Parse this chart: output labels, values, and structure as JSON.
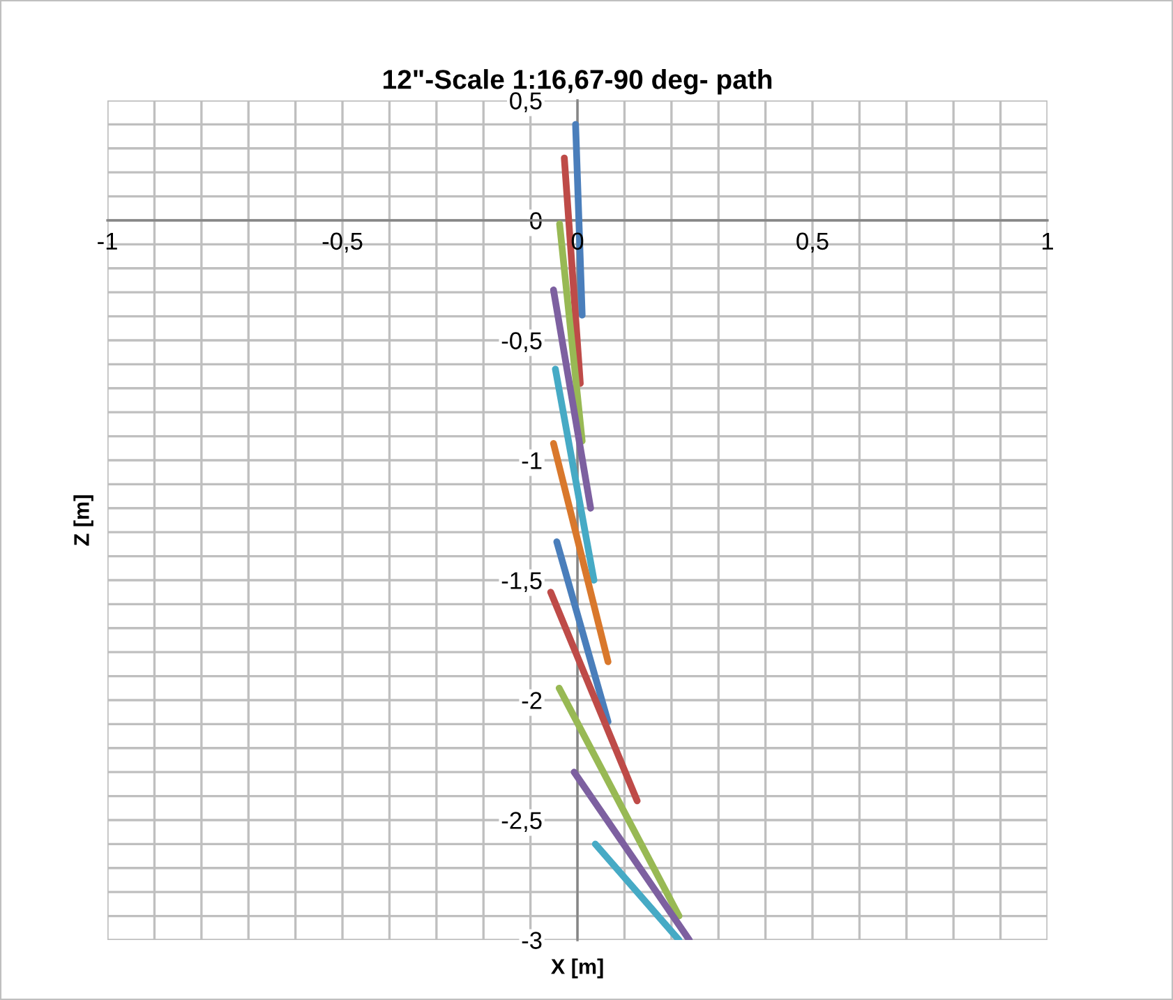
{
  "chart_data": {
    "type": "line",
    "title": "12\"-Scale 1:16,67-90 deg- path",
    "xlabel": "X [m]",
    "ylabel": "Z [m]",
    "xlim": [
      -1,
      1
    ],
    "ylim": [
      -3,
      0.5
    ],
    "xticks": [
      {
        "value": -1,
        "label": "-1"
      },
      {
        "value": -0.9,
        "label": null
      },
      {
        "value": -0.8,
        "label": null
      },
      {
        "value": -0.7,
        "label": null
      },
      {
        "value": -0.6,
        "label": null
      },
      {
        "value": -0.5,
        "label": "-0,5"
      },
      {
        "value": -0.4,
        "label": null
      },
      {
        "value": -0.3,
        "label": null
      },
      {
        "value": -0.2,
        "label": null
      },
      {
        "value": -0.1,
        "label": null
      },
      {
        "value": 0,
        "label": "0"
      },
      {
        "value": 0.1,
        "label": null
      },
      {
        "value": 0.2,
        "label": null
      },
      {
        "value": 0.3,
        "label": null
      },
      {
        "value": 0.4,
        "label": null
      },
      {
        "value": 0.5,
        "label": "0,5"
      },
      {
        "value": 0.6,
        "label": null
      },
      {
        "value": 0.7,
        "label": null
      },
      {
        "value": 0.8,
        "label": null
      },
      {
        "value": 0.9,
        "label": null
      },
      {
        "value": 1,
        "label": "1"
      }
    ],
    "yticks": [
      {
        "value": 0.5,
        "label": "0,5"
      },
      {
        "value": 0.4,
        "label": null
      },
      {
        "value": 0.3,
        "label": null
      },
      {
        "value": 0.2,
        "label": null
      },
      {
        "value": 0.1,
        "label": null
      },
      {
        "value": 0,
        "label": "0"
      },
      {
        "value": -0.1,
        "label": null
      },
      {
        "value": -0.2,
        "label": null
      },
      {
        "value": -0.3,
        "label": null
      },
      {
        "value": -0.4,
        "label": null
      },
      {
        "value": -0.5,
        "label": "-0,5"
      },
      {
        "value": -0.6,
        "label": null
      },
      {
        "value": -0.7,
        "label": null
      },
      {
        "value": -0.8,
        "label": null
      },
      {
        "value": -0.9,
        "label": null
      },
      {
        "value": -1,
        "label": "-1"
      },
      {
        "value": -1.1,
        "label": null
      },
      {
        "value": -1.2,
        "label": null
      },
      {
        "value": -1.3,
        "label": null
      },
      {
        "value": -1.4,
        "label": null
      },
      {
        "value": -1.5,
        "label": "-1,5"
      },
      {
        "value": -1.6,
        "label": null
      },
      {
        "value": -1.7,
        "label": null
      },
      {
        "value": -1.8,
        "label": null
      },
      {
        "value": -1.9,
        "label": null
      },
      {
        "value": -2,
        "label": "-2"
      },
      {
        "value": -2.1,
        "label": null
      },
      {
        "value": -2.2,
        "label": null
      },
      {
        "value": -2.3,
        "label": null
      },
      {
        "value": -2.4,
        "label": null
      },
      {
        "value": -2.5,
        "label": "-2,5"
      },
      {
        "value": -2.6,
        "label": null
      },
      {
        "value": -2.7,
        "label": null
      },
      {
        "value": -2.8,
        "label": null
      },
      {
        "value": -2.9,
        "label": null
      },
      {
        "value": -3,
        "label": "-3"
      }
    ],
    "grid": true,
    "marker": "none",
    "line_style": "solid",
    "series": [
      {
        "color": "#4a7ebb",
        "x": [
          -0.004,
          0.01
        ],
        "values": [
          0.4,
          -0.395
        ]
      },
      {
        "color": "#be4b48",
        "x": [
          -0.028,
          0.006
        ],
        "values": [
          0.26,
          -0.68
        ]
      },
      {
        "color": "#98b954",
        "x": [
          -0.038,
          0.01
        ],
        "values": [
          -0.015,
          -0.92
        ]
      },
      {
        "color": "#7d60a0",
        "x": [
          -0.051,
          0.028
        ],
        "values": [
          -0.29,
          -1.2
        ]
      },
      {
        "color": "#46aac5",
        "x": [
          -0.047,
          0.035
        ],
        "values": [
          -0.62,
          -1.5
        ]
      },
      {
        "color": "#d9782c",
        "x": [
          -0.051,
          0.065
        ],
        "values": [
          -0.93,
          -1.84
        ]
      },
      {
        "color": "#4a7ebb",
        "x": [
          -0.044,
          0.065
        ],
        "values": [
          -1.34,
          -2.09
        ]
      },
      {
        "color": "#be4b48",
        "x": [
          -0.057,
          0.127
        ],
        "values": [
          -1.55,
          -2.42
        ]
      },
      {
        "color": "#98b954",
        "x": [
          -0.039,
          0.216
        ],
        "values": [
          -1.95,
          -2.9
        ]
      },
      {
        "color": "#7d60a0",
        "x": [
          -0.007,
          0.238
        ],
        "values": [
          -2.3,
          -3.0
        ]
      },
      {
        "color": "#46aac5",
        "x": [
          0.038,
          0.216
        ],
        "values": [
          -2.6,
          -3.0
        ]
      }
    ]
  }
}
